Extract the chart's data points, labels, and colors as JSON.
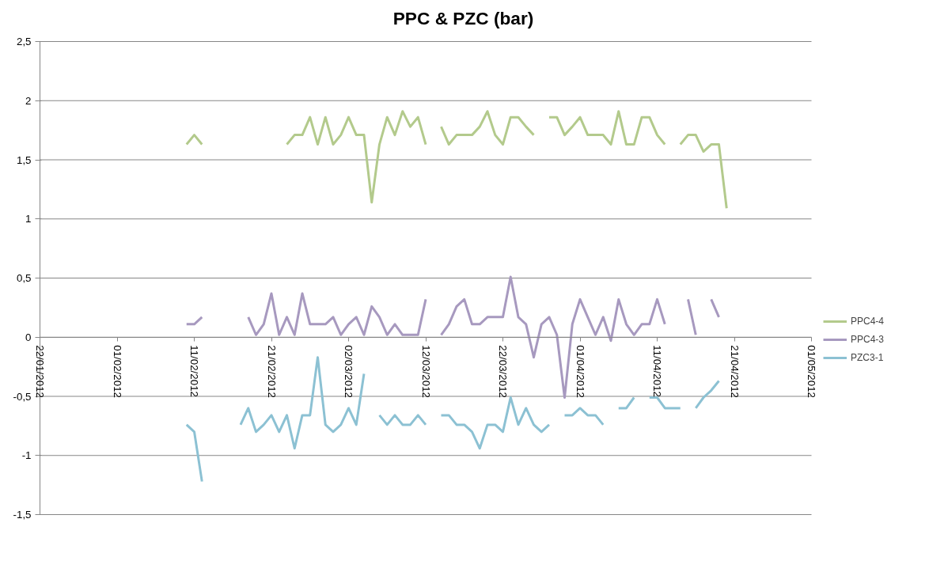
{
  "chart_data": {
    "type": "line",
    "title": "PPC & PZC (bar)",
    "x": [
      "2012-02-10",
      "2012-02-11",
      "2012-02-12",
      "2012-02-13",
      "2012-02-14",
      "2012-02-15",
      "2012-02-16",
      "2012-02-17",
      "2012-02-18",
      "2012-02-19",
      "2012-02-20",
      "2012-02-21",
      "2012-02-22",
      "2012-02-23",
      "2012-02-24",
      "2012-02-25",
      "2012-02-26",
      "2012-02-27",
      "2012-02-28",
      "2012-02-29",
      "2012-03-01",
      "2012-03-02",
      "2012-03-03",
      "2012-03-04",
      "2012-03-05",
      "2012-03-06",
      "2012-03-07",
      "2012-03-08",
      "2012-03-09",
      "2012-03-10",
      "2012-03-11",
      "2012-03-12",
      "2012-03-13",
      "2012-03-14",
      "2012-03-15",
      "2012-03-16",
      "2012-03-17",
      "2012-03-18",
      "2012-03-19",
      "2012-03-20",
      "2012-03-21",
      "2012-03-22",
      "2012-03-23",
      "2012-03-24",
      "2012-03-25",
      "2012-03-26",
      "2012-03-27",
      "2012-03-28",
      "2012-03-29",
      "2012-03-30",
      "2012-03-31",
      "2012-04-01",
      "2012-04-02",
      "2012-04-03",
      "2012-04-04",
      "2012-04-05",
      "2012-04-06",
      "2012-04-07",
      "2012-04-08",
      "2012-04-09",
      "2012-04-10",
      "2012-04-11",
      "2012-04-12",
      "2012-04-13",
      "2012-04-14",
      "2012-04-15",
      "2012-04-16",
      "2012-04-17",
      "2012-04-18",
      "2012-04-19",
      "2012-04-20"
    ],
    "series": [
      {
        "name": "PPC4-4",
        "color": "#b3ca8c",
        "values": [
          1.63,
          1.71,
          1.63,
          null,
          null,
          null,
          null,
          null,
          null,
          null,
          null,
          null,
          null,
          1.63,
          1.71,
          1.71,
          1.86,
          1.63,
          1.86,
          1.63,
          1.71,
          1.86,
          1.71,
          1.71,
          1.14,
          1.63,
          1.86,
          1.71,
          1.91,
          1.78,
          1.86,
          1.63,
          null,
          1.78,
          1.63,
          1.71,
          1.71,
          1.71,
          1.78,
          1.91,
          1.71,
          1.63,
          1.86,
          1.86,
          1.78,
          1.71,
          null,
          1.86,
          1.86,
          1.71,
          1.78,
          1.86,
          1.71,
          1.71,
          1.71,
          1.63,
          1.91,
          1.63,
          1.63,
          1.86,
          1.86,
          1.71,
          1.63,
          null,
          1.63,
          1.71,
          1.71,
          1.57,
          1.63,
          1.63,
          1.09
        ]
      },
      {
        "name": "PPC4-3",
        "color": "#a799bf",
        "values": [
          0.11,
          0.11,
          0.17,
          null,
          null,
          null,
          null,
          null,
          0.17,
          0.02,
          0.11,
          0.37,
          0.02,
          0.17,
          0.02,
          0.37,
          0.11,
          0.11,
          0.11,
          0.17,
          0.02,
          0.11,
          0.17,
          0.02,
          0.26,
          0.17,
          0.02,
          0.11,
          0.02,
          0.02,
          0.02,
          0.32,
          null,
          0.02,
          0.11,
          0.26,
          0.32,
          0.11,
          0.11,
          0.17,
          0.17,
          0.17,
          0.51,
          0.17,
          0.11,
          -0.17,
          0.11,
          0.17,
          0.02,
          -0.51,
          0.11,
          0.32,
          0.17,
          0.02,
          0.17,
          -0.03,
          0.32,
          0.11,
          0.02,
          0.11,
          0.11,
          0.32,
          0.11,
          null,
          null,
          0.32,
          0.02,
          null,
          0.32,
          0.17,
          null
        ]
      },
      {
        "name": "PZC3-1",
        "color": "#8cc1d3",
        "values": [
          -0.74,
          -0.8,
          -1.22,
          null,
          null,
          null,
          null,
          -0.74,
          -0.6,
          -0.8,
          -0.74,
          -0.66,
          -0.8,
          -0.66,
          -0.94,
          -0.66,
          -0.66,
          -0.17,
          -0.74,
          -0.8,
          -0.74,
          -0.6,
          -0.74,
          -0.31,
          null,
          -0.66,
          -0.74,
          -0.66,
          -0.74,
          -0.74,
          -0.66,
          -0.74,
          null,
          -0.66,
          -0.66,
          -0.74,
          -0.74,
          -0.8,
          -0.94,
          -0.74,
          -0.74,
          -0.8,
          -0.51,
          -0.74,
          -0.6,
          -0.74,
          -0.8,
          -0.74,
          null,
          -0.66,
          -0.66,
          -0.6,
          -0.66,
          -0.66,
          -0.74,
          null,
          -0.6,
          -0.6,
          -0.51,
          null,
          -0.51,
          -0.51,
          -0.6,
          -0.6,
          -0.6,
          null,
          -0.6,
          -0.51,
          -0.45,
          -0.37,
          null
        ]
      }
    ],
    "xlim": [
      "2012-01-22",
      "2012-05-01"
    ],
    "xticks": [
      {
        "value": "2012-01-22",
        "label": "22/01/2012"
      },
      {
        "value": "2012-02-01",
        "label": "01/02/2012"
      },
      {
        "value": "2012-02-11",
        "label": "11/02/2012"
      },
      {
        "value": "2012-02-21",
        "label": "21/02/2012"
      },
      {
        "value": "2012-03-02",
        "label": "02/03/2012"
      },
      {
        "value": "2012-03-12",
        "label": "12/03/2012"
      },
      {
        "value": "2012-03-22",
        "label": "22/03/2012"
      },
      {
        "value": "2012-04-01",
        "label": "01/04/2012"
      },
      {
        "value": "2012-04-11",
        "label": "11/04/2012"
      },
      {
        "value": "2012-04-21",
        "label": "21/04/2012"
      },
      {
        "value": "2012-05-01",
        "label": "01/05/2012"
      }
    ],
    "ylim": [
      -1.5,
      2.5
    ],
    "yticks": [
      {
        "value": -1.5,
        "label": "-1,5"
      },
      {
        "value": -1,
        "label": "-1"
      },
      {
        "value": -0.5,
        "label": "-0,5"
      },
      {
        "value": 0,
        "label": "0"
      },
      {
        "value": 0.5,
        "label": "0,5"
      },
      {
        "value": 1,
        "label": "1"
      },
      {
        "value": 1.5,
        "label": "1,5"
      },
      {
        "value": 2,
        "label": "2"
      },
      {
        "value": 2.5,
        "label": "2,5"
      }
    ],
    "grid": "y",
    "legend": "right",
    "marker": "none",
    "line_style": "solid"
  }
}
